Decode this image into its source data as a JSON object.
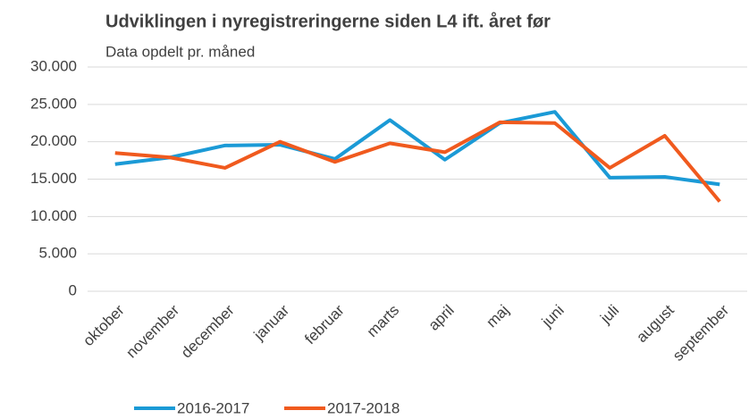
{
  "chart_data": {
    "type": "line",
    "title": "Udviklingen i nyregistreringerne siden L4 ift. året før",
    "subtitle": "Data opdelt pr. måned",
    "categories": [
      "oktober",
      "november",
      "december",
      "januar",
      "februar",
      "marts",
      "april",
      "maj",
      "juni",
      "juli",
      "august",
      "september"
    ],
    "series": [
      {
        "name": "2016-2017",
        "color": "#1b9ad6",
        "values": [
          17000,
          17900,
          19500,
          19600,
          17700,
          22900,
          17600,
          22500,
          24000,
          15200,
          15300,
          14300
        ]
      },
      {
        "name": "2017-2018",
        "color": "#f05a1e",
        "values": [
          18500,
          17900,
          16500,
          20000,
          17300,
          19800,
          18600,
          22600,
          22500,
          16500,
          20800,
          12000
        ]
      }
    ],
    "ylim": [
      0,
      30000
    ],
    "yticks": [
      0,
      {
        "value": 5000,
        "label": "5.000"
      },
      {
        "value": 10000,
        "label": "10.000"
      },
      {
        "value": 15000,
        "label": "15.000"
      },
      {
        "value": 20000,
        "label": "20.000"
      },
      {
        "value": 25000,
        "label": "25.000"
      },
      {
        "value": 30000,
        "label": "30.000"
      }
    ],
    "grid": true,
    "legend": "bottom"
  }
}
